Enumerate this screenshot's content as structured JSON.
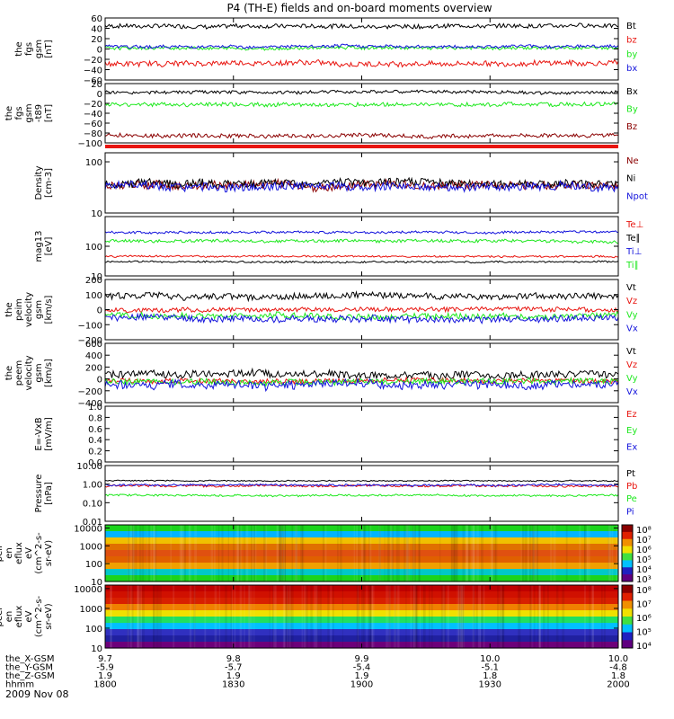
{
  "title": "P4 (TH-E) fields and on-board moments overview",
  "date": "2009 Nov 08",
  "colors": {
    "black": "#000000",
    "red": "#e8150f",
    "green": "#1ee81e",
    "blue": "#1414dc",
    "darkred": "#8b0000"
  },
  "chart_data": {
    "type": "line",
    "x_axis": {
      "units": "hhmm",
      "ticks": [
        "1800",
        "1830",
        "1900",
        "1930",
        "2000"
      ],
      "range": [
        "1800",
        "2000"
      ],
      "ephemeris": [
        {
          "label": "the_X-GSM",
          "values": [
            "9.7",
            "9.8",
            "9.9",
            "10.0",
            "10.0"
          ]
        },
        {
          "label": "the_Y-GSM",
          "values": [
            "-5.9",
            "-5.7",
            "-5.4",
            "-5.1",
            "-4.8"
          ]
        },
        {
          "label": "the_Z-GSM",
          "values": [
            "1.9",
            "1.9",
            "1.9",
            "1.8",
            "1.8"
          ]
        },
        {
          "label": "hhmm",
          "values": [
            "1800",
            "1830",
            "1900",
            "1930",
            "2000"
          ]
        }
      ]
    },
    "panels": [
      {
        "id": "fgs",
        "type": "line",
        "scale": "linear",
        "ylabel": [
          "the",
          "fgs",
          "gsm",
          "[nT]"
        ],
        "ylim": [
          -60,
          60
        ],
        "ticks": [
          "60",
          "40",
          "20",
          "0",
          "−20",
          "−40",
          "−60"
        ],
        "tick_values": [
          60,
          40,
          20,
          0,
          -20,
          -40,
          -60
        ],
        "series": [
          {
            "name": "Bt",
            "color": "black",
            "level": 45,
            "noise": 4
          },
          {
            "name": "bz",
            "color": "red",
            "level": -28,
            "noise": 5
          },
          {
            "name": "by",
            "color": "green",
            "level": 2,
            "noise": 3
          },
          {
            "name": "bx",
            "color": "blue",
            "level": 5,
            "noise": 3
          }
        ]
      },
      {
        "id": "fgs_t89",
        "type": "line",
        "scale": "linear",
        "ylabel": [
          "the",
          "fgs",
          "gsm",
          "-t89",
          "[nT]"
        ],
        "ylim": [
          -100,
          20
        ],
        "ticks": [
          "20",
          "0",
          "−20",
          "−40",
          "−60",
          "−80",
          "−100"
        ],
        "tick_values": [
          20,
          0,
          -20,
          -40,
          -60,
          -80,
          -100
        ],
        "series": [
          {
            "name": "Bx",
            "color": "black",
            "level": 3,
            "noise": 3
          },
          {
            "name": "By",
            "color": "green",
            "level": -22,
            "noise": 4
          },
          {
            "name": "Bz",
            "color": "darkred",
            "level": -85,
            "noise": 4
          }
        ]
      },
      {
        "id": "density",
        "type": "line",
        "scale": "log",
        "ylabel": [
          "Density",
          "[cm-3]"
        ],
        "ylim": [
          10,
          150
        ],
        "ticks": [
          "100",
          "10"
        ],
        "tick_values": [
          100,
          10
        ],
        "series": [
          {
            "name": "Ne",
            "color": "darkred",
            "level": 35,
            "noise": 0.08
          },
          {
            "name": "Ni",
            "color": "black",
            "level": 38,
            "noise": 0.08
          },
          {
            "name": "Npot",
            "color": "blue",
            "level": 33,
            "noise": 0.08
          }
        ]
      },
      {
        "id": "temperature",
        "type": "line",
        "scale": "log",
        "ylabel": [
          "mag13",
          "[eV]"
        ],
        "ylim": [
          10,
          1000
        ],
        "ticks": [
          "100",
          "10"
        ],
        "tick_values": [
          100,
          10
        ],
        "series": [
          {
            "name": "Te⊥",
            "color": "red",
            "level": 45,
            "noise": 0.03
          },
          {
            "name": "Te∥",
            "color": "black",
            "level": 30,
            "noise": 0.03
          },
          {
            "name": "Ti⊥",
            "color": "blue",
            "level": 300,
            "noise": 0.04
          },
          {
            "name": "Ti∥",
            "color": "green",
            "level": 150,
            "noise": 0.05
          }
        ]
      },
      {
        "id": "peim_velocity",
        "type": "line",
        "scale": "linear",
        "ylabel": [
          "the",
          "peim",
          "velocity",
          "gsm",
          "[km/s]"
        ],
        "ylim": [
          -200,
          200
        ],
        "ticks": [
          "200",
          "100",
          "0",
          "−100",
          "−200"
        ],
        "tick_values": [
          200,
          100,
          0,
          -100,
          -200
        ],
        "series": [
          {
            "name": "Vt",
            "color": "black",
            "level": 90,
            "noise": 20
          },
          {
            "name": "Vz",
            "color": "red",
            "level": 0,
            "noise": 15
          },
          {
            "name": "Vy",
            "color": "green",
            "level": -40,
            "noise": 20
          },
          {
            "name": "Vx",
            "color": "blue",
            "level": -60,
            "noise": 22
          }
        ]
      },
      {
        "id": "peem_velocity",
        "type": "line",
        "scale": "linear",
        "ylabel": [
          "the",
          "peem",
          "velocity",
          "gsm",
          "[km/s]"
        ],
        "ylim": [
          -400,
          600
        ],
        "ticks": [
          "600",
          "400",
          "200",
          "0",
          "−200",
          "−400"
        ],
        "tick_values": [
          600,
          400,
          200,
          0,
          -200,
          -400
        ],
        "series": [
          {
            "name": "Vt",
            "color": "black",
            "level": 70,
            "noise": 60
          },
          {
            "name": "Vz",
            "color": "red",
            "level": -30,
            "noise": 40
          },
          {
            "name": "Vy",
            "color": "green",
            "level": -50,
            "noise": 50
          },
          {
            "name": "Vx",
            "color": "blue",
            "level": -90,
            "noise": 70
          }
        ]
      },
      {
        "id": "efield",
        "type": "line",
        "scale": "linear",
        "ylabel": [
          "E=-VxB",
          "[mV/m]"
        ],
        "ylim": [
          0.0,
          1.0
        ],
        "ticks": [
          "1.0",
          "0.8",
          "0.6",
          "0.4",
          "0.2",
          "0.0"
        ],
        "tick_values": [
          1.0,
          0.8,
          0.6,
          0.4,
          0.2,
          0.0
        ],
        "series": [
          {
            "name": "Ez",
            "color": "red",
            "level": null,
            "noise": 0
          },
          {
            "name": "Ey",
            "color": "green",
            "level": null,
            "noise": 0
          },
          {
            "name": "Ex",
            "color": "blue",
            "level": null,
            "noise": 0
          }
        ]
      },
      {
        "id": "pressure",
        "type": "line",
        "scale": "log",
        "ylabel": [
          "Pressure",
          "[nPa]"
        ],
        "ylim": [
          0.01,
          10.0
        ],
        "ticks": [
          "10.00",
          "1.00",
          "0.10",
          "0.01"
        ],
        "tick_values": [
          10.0,
          1.0,
          0.1,
          0.01
        ],
        "series": [
          {
            "name": "Pt",
            "color": "black",
            "level": 1.5,
            "noise": 0.03
          },
          {
            "name": "Pb",
            "color": "red",
            "level": 0.8,
            "noise": 0.06
          },
          {
            "name": "Pe",
            "color": "green",
            "level": 0.25,
            "noise": 0.05
          },
          {
            "name": "Pi",
            "color": "blue",
            "level": 0.9,
            "noise": 0.05
          }
        ]
      },
      {
        "id": "peir_spectrogram",
        "type": "heatmap",
        "scale": "log",
        "ylabel": [
          "the",
          "peir",
          "en",
          "eflux",
          "eV",
          "(cm^2-s-",
          "sr-eV)"
        ],
        "ylim": [
          10,
          15000
        ],
        "ticks": [
          "10000",
          "1000",
          "100",
          "10"
        ],
        "tick_values": [
          10000,
          1000,
          100,
          10
        ],
        "colorbar": {
          "labels": [
            "10⁸",
            "10⁷",
            "10⁶",
            "10⁵",
            "10⁴",
            "10³"
          ],
          "values": [
            100000000,
            10000000,
            1000000,
            100000,
            10000,
            1000
          ]
        }
      },
      {
        "id": "peer_spectrogram",
        "type": "heatmap",
        "scale": "log",
        "ylabel": [
          "the",
          "peer",
          "en",
          "eflux",
          "eV",
          "(cm^2-s-",
          "sr-eV)"
        ],
        "ylim": [
          10,
          15000
        ],
        "ticks": [
          "10000",
          "1000",
          "100",
          "10"
        ],
        "tick_values": [
          10000,
          1000,
          100,
          10
        ],
        "colorbar": {
          "labels": [
            "10⁸",
            "10⁷",
            "10⁶",
            "10⁵",
            "10⁴"
          ],
          "values": [
            100000000,
            10000000,
            1000000,
            100000,
            10000
          ]
        }
      }
    ]
  }
}
